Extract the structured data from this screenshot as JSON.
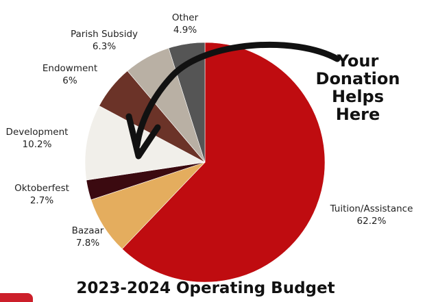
{
  "chart_data": {
    "type": "pie",
    "title": "2023-2024 Operating Budget",
    "callout": [
      "Your",
      "Donation",
      "Helps Here"
    ],
    "slices": [
      {
        "label": "Tuition/Assistance",
        "value": 62.2,
        "display": "62.2%",
        "color": "#bf0c10"
      },
      {
        "label": "Bazaar",
        "value": 7.8,
        "display": "7.8%",
        "color": "#e4ad5e"
      },
      {
        "label": "Oktoberfest",
        "value": 2.7,
        "display": "2.7%",
        "color": "#3b0a10"
      },
      {
        "label": "Development",
        "value": 10.2,
        "display": "10.2%",
        "color": "#f1efea"
      },
      {
        "label": "Endowment",
        "value": 6,
        "display": "6%",
        "color": "#6b3328"
      },
      {
        "label": "Parish Subsidy",
        "value": 6.3,
        "display": "6.3%",
        "color": "#b9b0a4"
      },
      {
        "label": "Other",
        "value": 4.9,
        "display": "4.9%",
        "color": "#555555"
      }
    ]
  }
}
